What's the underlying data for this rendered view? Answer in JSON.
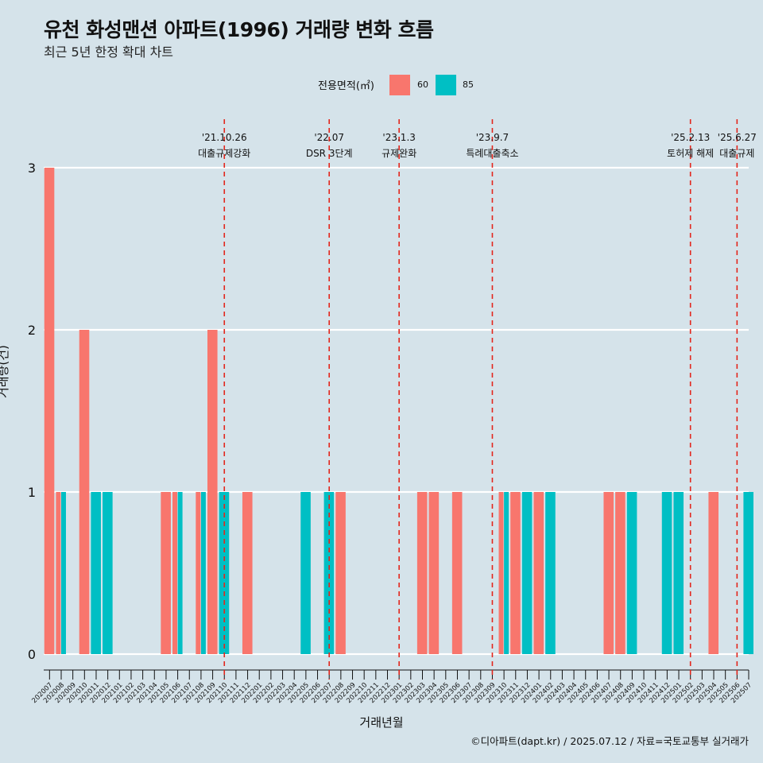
{
  "title": "유천 화성맨션 아파트(1996) 거래량 변화 흐름",
  "subtitle": "최근 5년 한정 확대 차트",
  "caption": "©디아파트(dapt.kr) / 2025.07.12 / 자료=국토교통부 실거래가",
  "legend": {
    "title": "전용면적(㎡)",
    "items": [
      {
        "label": "60",
        "color": "#f8766d"
      },
      {
        "label": "85",
        "color": "#00bfc4"
      }
    ]
  },
  "chart_data": {
    "type": "bar",
    "xlabel": "거래년월",
    "ylabel": "거래량(건)",
    "ylim": [
      0,
      3
    ],
    "yticks": [
      0,
      1,
      2,
      3
    ],
    "categories": [
      "202007",
      "202008",
      "202009",
      "202010",
      "202011",
      "202012",
      "202101",
      "202102",
      "202103",
      "202104",
      "202105",
      "202106",
      "202107",
      "202108",
      "202109",
      "202110",
      "202111",
      "202112",
      "202201",
      "202202",
      "202203",
      "202204",
      "202205",
      "202206",
      "202207",
      "202208",
      "202209",
      "202210",
      "202211",
      "202212",
      "202301",
      "202302",
      "202303",
      "202304",
      "202305",
      "202306",
      "202307",
      "202308",
      "202309",
      "202310",
      "202311",
      "202312",
      "202401",
      "202402",
      "202403",
      "202404",
      "202405",
      "202406",
      "202407",
      "202408",
      "202409",
      "202410",
      "202411",
      "202412",
      "202501",
      "202502",
      "202503",
      "202504",
      "202505",
      "202506",
      "202507"
    ],
    "series": [
      {
        "name": "60",
        "color": "#f8766d",
        "values": [
          3,
          1,
          0,
          2,
          0,
          0,
          0,
          0,
          0,
          0,
          1,
          1,
          0,
          1,
          2,
          0,
          0,
          1,
          0,
          0,
          0,
          0,
          0,
          0,
          0,
          1,
          0,
          0,
          0,
          0,
          0,
          0,
          1,
          1,
          0,
          1,
          0,
          0,
          0,
          1,
          1,
          0,
          1,
          0,
          0,
          0,
          0,
          0,
          1,
          1,
          0,
          0,
          0,
          0,
          0,
          0,
          0,
          1,
          0,
          0,
          0
        ]
      },
      {
        "name": "85",
        "color": "#00bfc4",
        "values": [
          0,
          1,
          0,
          0,
          1,
          1,
          0,
          0,
          0,
          0,
          0,
          1,
          0,
          1,
          0,
          1,
          0,
          0,
          0,
          0,
          0,
          0,
          1,
          0,
          1,
          0,
          0,
          0,
          0,
          0,
          0,
          0,
          0,
          0,
          0,
          0,
          0,
          0,
          0,
          1,
          0,
          1,
          0,
          1,
          0,
          0,
          0,
          0,
          0,
          0,
          1,
          0,
          0,
          1,
          1,
          0,
          0,
          0,
          0,
          0,
          1
        ]
      }
    ],
    "grid": true,
    "legend_position": "top",
    "events": [
      {
        "date": "202110",
        "line1": "'21.10.26",
        "line2": "대출규제강화"
      },
      {
        "date": "202207",
        "line1": "'22.07",
        "line2": "DSR 3단계"
      },
      {
        "date": "202301",
        "line1": "'23.1.3",
        "line2": "규제완화"
      },
      {
        "date": "202309",
        "line1": "'23.9.7",
        "line2": "특례대출축소"
      },
      {
        "date": "202502",
        "line1": "'25.2.13",
        "line2": "토허제 해제"
      },
      {
        "date": "202506",
        "line1": "'25.6.27",
        "line2": "대출규제"
      }
    ]
  }
}
